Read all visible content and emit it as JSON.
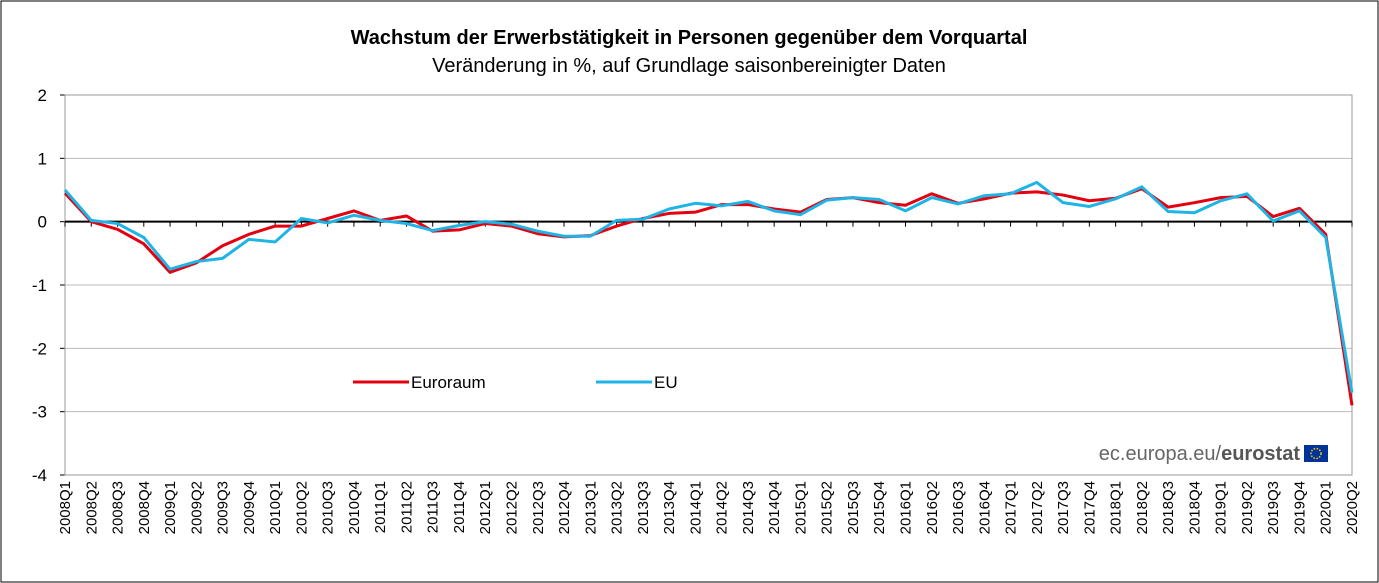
{
  "chart_data": {
    "type": "line",
    "title": "Wachstum der Erwerbstätigkeit in Personen gegenüber dem Vorquartal",
    "subtitle": "Veränderung in %, auf Grundlage saisonbereinigter Daten",
    "categories": [
      "2008Q1",
      "2008Q2",
      "2008Q3",
      "2008Q4",
      "2009Q1",
      "2009Q2",
      "2009Q3",
      "2009Q4",
      "2010Q1",
      "2010Q2",
      "2010Q3",
      "2010Q4",
      "2011Q1",
      "2011Q2",
      "2011Q3",
      "2011Q4",
      "2012Q1",
      "2012Q2",
      "2012Q3",
      "2012Q4",
      "2013Q1",
      "2013Q2",
      "2013Q3",
      "2013Q4",
      "2014Q1",
      "2014Q2",
      "2014Q3",
      "2014Q4",
      "2015Q1",
      "2015Q2",
      "2015Q3",
      "2015Q4",
      "2016Q1",
      "2016Q2",
      "2016Q3",
      "2016Q4",
      "2017Q1",
      "2017Q2",
      "2017Q3",
      "2017Q4",
      "2018Q1",
      "2018Q2",
      "2018Q3",
      "2018Q4",
      "2019Q1",
      "2019Q2",
      "2019Q3",
      "2019Q4",
      "2020Q1",
      "2020Q2"
    ],
    "series": [
      {
        "name": "Euroraum",
        "color": "#e3000f",
        "values": [
          0.45,
          0.0,
          -0.12,
          -0.35,
          -0.8,
          -0.65,
          -0.38,
          -0.2,
          -0.07,
          -0.07,
          0.05,
          0.17,
          0.02,
          0.09,
          -0.15,
          -0.13,
          -0.03,
          -0.07,
          -0.19,
          -0.24,
          -0.22,
          -0.07,
          0.05,
          0.13,
          0.15,
          0.27,
          0.27,
          0.2,
          0.15,
          0.35,
          0.38,
          0.3,
          0.26,
          0.44,
          0.29,
          0.36,
          0.45,
          0.47,
          0.42,
          0.33,
          0.37,
          0.52,
          0.23,
          0.3,
          0.38,
          0.4,
          0.08,
          0.21,
          -0.2,
          -2.9
        ]
      },
      {
        "name": "EU",
        "color": "#1eb4e6",
        "values": [
          0.5,
          0.02,
          -0.03,
          -0.25,
          -0.75,
          -0.63,
          -0.58,
          -0.28,
          -0.32,
          0.05,
          -0.02,
          0.1,
          0.02,
          -0.03,
          -0.14,
          -0.06,
          0.0,
          -0.04,
          -0.15,
          -0.23,
          -0.23,
          0.02,
          0.04,
          0.2,
          0.29,
          0.25,
          0.32,
          0.17,
          0.11,
          0.34,
          0.38,
          0.35,
          0.17,
          0.38,
          0.28,
          0.41,
          0.44,
          0.62,
          0.3,
          0.24,
          0.36,
          0.55,
          0.16,
          0.14,
          0.33,
          0.44,
          0.01,
          0.17,
          -0.25,
          -2.7
        ]
      }
    ],
    "ylim": [
      -4,
      2
    ],
    "yticks": [
      -4,
      -3,
      -2,
      -1,
      0,
      1,
      2
    ],
    "grid": true,
    "source": [
      "ec.europa.eu/",
      "eurostat"
    ]
  }
}
